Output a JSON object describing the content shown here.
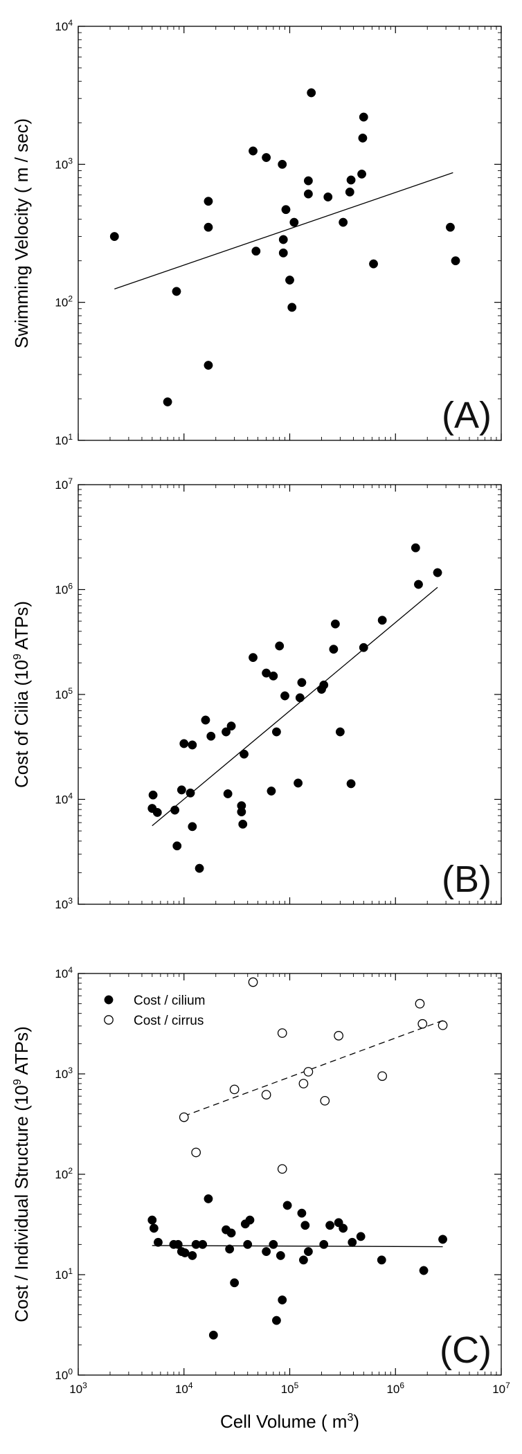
{
  "chart_data": [
    {
      "panel": "(A)",
      "type": "scatter",
      "ylabel": "Swimming Velocity (  m / sec)",
      "xlabel": "",
      "x_scale": "log",
      "y_scale": "log",
      "xlim": [
        1000,
        10000000
      ],
      "ylim": [
        10,
        10000
      ],
      "y_ticks": [
        10,
        100,
        1000,
        10000
      ],
      "y_tick_labels": [
        "10^1",
        "10^2",
        "10^3",
        "10^4"
      ],
      "x_tick_labels": [],
      "series": [
        {
          "marker": "filled",
          "points": [
            [
              2200,
              300
            ],
            [
              7000,
              19
            ],
            [
              8500,
              120
            ],
            [
              17000,
              540
            ],
            [
              17000,
              350
            ],
            [
              17000,
              35
            ],
            [
              45000,
              1250
            ],
            [
              48000,
              235
            ],
            [
              60000,
              1120
            ],
            [
              85000,
              1000
            ],
            [
              87000,
              285
            ],
            [
              87000,
              228
            ],
            [
              92000,
              470
            ],
            [
              100000,
              145
            ],
            [
              105000,
              92
            ],
            [
              110000,
              380
            ],
            [
              160000,
              3300
            ],
            [
              150000,
              760
            ],
            [
              150000,
              610
            ],
            [
              230000,
              580
            ],
            [
              320000,
              380
            ],
            [
              370000,
              630
            ],
            [
              380000,
              770
            ],
            [
              480000,
              850
            ],
            [
              490000,
              1550
            ],
            [
              500000,
              2200
            ],
            [
              620000,
              190
            ],
            [
              3300000,
              350
            ],
            [
              3700000,
              200
            ]
          ]
        }
      ],
      "fit_lines": [
        {
          "style": "solid",
          "x": [
            2200,
            3500000
          ],
          "y": [
            125,
            870
          ]
        }
      ]
    },
    {
      "panel": "(B)",
      "type": "scatter",
      "ylabel": "Cost of Cilia (10^9 ATPs)",
      "ylabel_main": "Cost of Cilia (10",
      "ylabel_sup": "9",
      "ylabel_tail": " ATPs)",
      "xlabel": "",
      "x_scale": "log",
      "y_scale": "log",
      "xlim": [
        1000,
        10000000
      ],
      "ylim": [
        1000,
        10000000
      ],
      "y_ticks": [
        1000,
        10000,
        100000,
        1000000,
        10000000
      ],
      "y_tick_labels": [
        "10^3",
        "10^4",
        "10^5",
        "10^6",
        "10^7"
      ],
      "x_tick_labels": [],
      "series": [
        {
          "marker": "filled",
          "points": [
            [
              5000,
              8200
            ],
            [
              5100,
              11000
            ],
            [
              5600,
              7500
            ],
            [
              8200,
              7900
            ],
            [
              8600,
              3600
            ],
            [
              9500,
              12300
            ],
            [
              10000,
              34000
            ],
            [
              11500,
              11500
            ],
            [
              12000,
              33000
            ],
            [
              12000,
              5500
            ],
            [
              14000,
              2200
            ],
            [
              16000,
              57000
            ],
            [
              18000,
              40000
            ],
            [
              25000,
              44000
            ],
            [
              26000,
              11300
            ],
            [
              28000,
              50000
            ],
            [
              35000,
              8700
            ],
            [
              35000,
              7600
            ],
            [
              36000,
              5800
            ],
            [
              37000,
              27000
            ],
            [
              45000,
              225000
            ],
            [
              60000,
              160000
            ],
            [
              67000,
              12000
            ],
            [
              70000,
              150000
            ],
            [
              75000,
              44000
            ],
            [
              80000,
              290000
            ],
            [
              90000,
              97000
            ],
            [
              120000,
              14300
            ],
            [
              125000,
              93000
            ],
            [
              130000,
              130000
            ],
            [
              200000,
              112000
            ],
            [
              210000,
              123000
            ],
            [
              260000,
              270000
            ],
            [
              270000,
              470000
            ],
            [
              300000,
              44000
            ],
            [
              380000,
              14100
            ],
            [
              500000,
              280000
            ],
            [
              750000,
              510000
            ],
            [
              1550000,
              2500000
            ],
            [
              1650000,
              1120000
            ],
            [
              2500000,
              1450000
            ]
          ]
        }
      ],
      "fit_lines": [
        {
          "style": "solid",
          "x": [
            5000,
            2500000
          ],
          "y": [
            5600,
            1050000
          ]
        }
      ]
    },
    {
      "panel": "(C)",
      "type": "scatter",
      "ylabel": "Cost / Individual Structure (10^9 ATPs)",
      "ylabel_main": "Cost / Individual Structure (10",
      "ylabel_sup": "9",
      "ylabel_tail": " ATPs)",
      "xlabel": "Cell Volume (  m^3)",
      "xlabel_main": "Cell Volume (  m",
      "xlabel_sup": "3",
      "xlabel_tail": ")",
      "x_scale": "log",
      "y_scale": "log",
      "xlim": [
        1000,
        10000000
      ],
      "ylim": [
        1,
        10000
      ],
      "x_ticks": [
        1000,
        10000,
        100000,
        1000000,
        10000000
      ],
      "x_tick_labels": [
        "10^3",
        "10^4",
        "10^5",
        "10^6",
        "10^7"
      ],
      "y_ticks": [
        1,
        10,
        100,
        1000,
        10000
      ],
      "y_tick_labels": [
        "10^0",
        "10^1",
        "10^2",
        "10^3",
        "10^4"
      ],
      "legend": {
        "placement": "top-left",
        "entries": [
          "Cost / cilium",
          "Cost / cirrus"
        ]
      },
      "series": [
        {
          "name": "Cost / cilium",
          "marker": "filled",
          "points": [
            [
              5000,
              35
            ],
            [
              5200,
              29
            ],
            [
              5700,
              21
            ],
            [
              8000,
              20
            ],
            [
              8800,
              20
            ],
            [
              9500,
              17
            ],
            [
              10200,
              16.5
            ],
            [
              12000,
              15.5
            ],
            [
              13000,
              20
            ],
            [
              15000,
              20
            ],
            [
              17000,
              57
            ],
            [
              19000,
              2.5
            ],
            [
              25000,
              28
            ],
            [
              27000,
              18
            ],
            [
              28000,
              26
            ],
            [
              30000,
              8.3
            ],
            [
              38000,
              32
            ],
            [
              40000,
              20
            ],
            [
              42000,
              35
            ],
            [
              60000,
              17
            ],
            [
              70000,
              20
            ],
            [
              75000,
              3.5
            ],
            [
              82000,
              15.5
            ],
            [
              85000,
              5.6
            ],
            [
              95000,
              49
            ],
            [
              130000,
              41
            ],
            [
              135000,
              14
            ],
            [
              140000,
              31
            ],
            [
              150000,
              17
            ],
            [
              210000,
              20
            ],
            [
              240000,
              31
            ],
            [
              290000,
              33
            ],
            [
              320000,
              29
            ],
            [
              390000,
              21
            ],
            [
              470000,
              24
            ],
            [
              740000,
              14
            ],
            [
              1850000,
              11
            ],
            [
              2800000,
              22.5
            ]
          ]
        },
        {
          "name": "Cost / cirrus",
          "marker": "open",
          "points": [
            [
              10000,
              370
            ],
            [
              13000,
              165
            ],
            [
              30000,
              700
            ],
            [
              45000,
              8200
            ],
            [
              60000,
              620
            ],
            [
              85000,
              2550
            ],
            [
              85000,
              113
            ],
            [
              135000,
              800
            ],
            [
              150000,
              1050
            ],
            [
              215000,
              540
            ],
            [
              290000,
              2400
            ],
            [
              750000,
              950
            ],
            [
              1700000,
              5000
            ],
            [
              1800000,
              3150
            ],
            [
              2800000,
              3050
            ]
          ]
        }
      ],
      "fit_lines": [
        {
          "style": "solid",
          "x": [
            5000,
            2800000
          ],
          "y": [
            19.5,
            19
          ]
        },
        {
          "style": "dashed",
          "x": [
            10000,
            2800000
          ],
          "y": [
            380,
            3400
          ]
        }
      ]
    }
  ]
}
